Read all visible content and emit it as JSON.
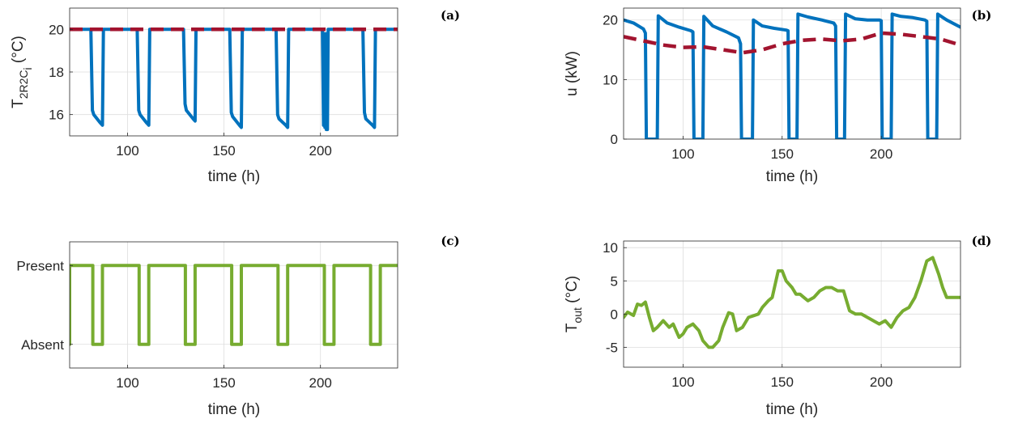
{
  "colors": {
    "temperature": "#0072bd",
    "setpoint": "#a2142f",
    "occupancy": "#77ac30",
    "outdoor": "#77ac30"
  },
  "chart_data": [
    {
      "id": "a",
      "type": "line",
      "panel_label": "(a)",
      "xlabel": "time (h)",
      "ylabel": "T",
      "ylabel_sub": "2R2C",
      "ylabel_sub2": "i",
      "ylabel_unit": " (°C)",
      "xlim": [
        70,
        240
      ],
      "ylim": [
        15,
        21
      ],
      "xticks": [
        100,
        150,
        200
      ],
      "xtick_labels": [
        "100",
        "150",
        "200"
      ],
      "yticks": [
        16,
        18,
        20
      ],
      "ytick_labels": [
        "16",
        "18",
        "20"
      ],
      "grid": true,
      "series": [
        {
          "style": "solid",
          "color_key": "temperature",
          "x": [
            70,
            81,
            81.8,
            82.5,
            86,
            87,
            87.5,
            105,
            105.8,
            106.5,
            110,
            111,
            111.5,
            129,
            129.8,
            130.5,
            134,
            135,
            135.5,
            153,
            153.8,
            154.5,
            158,
            159,
            159.5,
            177,
            177.8,
            178.5,
            182,
            183,
            183.5,
            201,
            201.6,
            201.9,
            202.3,
            202.6,
            203,
            203.6,
            204,
            222,
            222.8,
            223.5,
            227,
            228,
            228.5,
            240
          ],
          "y": [
            20,
            20,
            16.2,
            16.0,
            15.6,
            15.5,
            20,
            20,
            16.2,
            16.0,
            15.6,
            15.5,
            20,
            20,
            16.5,
            16.2,
            15.8,
            15.7,
            20,
            20,
            16.1,
            15.9,
            15.5,
            15.4,
            20,
            20,
            16.0,
            15.8,
            15.5,
            15.4,
            20,
            20,
            15.5,
            19.8,
            15.4,
            19.8,
            15.3,
            15.3,
            20,
            20,
            16.1,
            15.8,
            15.5,
            15.4,
            20,
            20
          ]
        },
        {
          "style": "dashed",
          "color_key": "setpoint",
          "x": [
            70,
            240
          ],
          "y": [
            20,
            20
          ]
        }
      ]
    },
    {
      "id": "b",
      "type": "line",
      "panel_label": "(b)",
      "xlabel": "time (h)",
      "ylabel": "u (kW)",
      "xlim": [
        70,
        240
      ],
      "ylim": [
        0,
        22
      ],
      "xticks": [
        100,
        150,
        200
      ],
      "xtick_labels": [
        "100",
        "150",
        "200"
      ],
      "yticks": [
        0,
        10,
        20
      ],
      "ytick_labels": [
        "0",
        "10",
        "20"
      ],
      "grid": true,
      "series": [
        {
          "style": "solid",
          "color_key": "temperature",
          "x": [
            70,
            75,
            80,
            81,
            81.5,
            87,
            87.5,
            92,
            98,
            104,
            105,
            105.5,
            110,
            110.5,
            115,
            122,
            128,
            129,
            129.5,
            135,
            135.5,
            140,
            146,
            152,
            153,
            153.5,
            157.5,
            158,
            163,
            170,
            176,
            177,
            177.5,
            181.5,
            182,
            187,
            193,
            199,
            200,
            200.5,
            205,
            205.5,
            210,
            216,
            222,
            223,
            223.5,
            228,
            228.5,
            233,
            240
          ],
          "y": [
            20,
            19.5,
            18.5,
            17.8,
            0,
            0,
            20.7,
            19.5,
            18.8,
            18.2,
            18.0,
            0,
            0,
            20.6,
            19,
            18,
            17,
            16,
            0,
            0,
            20,
            19,
            18.6,
            18.3,
            18.2,
            0,
            0,
            21,
            20.5,
            20,
            19.5,
            19.0,
            0,
            0,
            21,
            20.2,
            20,
            20,
            19.9,
            0,
            0,
            21,
            20.6,
            20.4,
            20,
            19.8,
            0,
            0,
            21,
            20,
            18.8
          ]
        },
        {
          "style": "dashed",
          "color_key": "setpoint",
          "x": [
            70,
            80,
            90,
            100,
            110,
            120,
            130,
            140,
            150,
            160,
            170,
            180,
            190,
            200,
            210,
            220,
            230,
            240
          ],
          "y": [
            17.2,
            16.5,
            15.8,
            15.4,
            15.5,
            15.0,
            14.5,
            15.0,
            16.0,
            16.6,
            16.8,
            16.5,
            16.8,
            17.8,
            17.6,
            17.2,
            16.8,
            15.8
          ]
        }
      ]
    },
    {
      "id": "c",
      "type": "line",
      "panel_label": "(c)",
      "xlabel": "time (h)",
      "ylabel": "",
      "xlim": [
        70,
        240
      ],
      "ylim": [
        -0.3,
        1.3
      ],
      "xticks": [
        100,
        150,
        200
      ],
      "xtick_labels": [
        "100",
        "150",
        "200"
      ],
      "yticks": [
        0,
        1
      ],
      "ytick_labels": [
        "Absent",
        "Present"
      ],
      "grid": true,
      "series": [
        {
          "style": "solid",
          "color_key": "occupancy",
          "x": [
            70,
            70,
            82,
            82,
            87,
            87,
            106,
            106,
            111,
            111,
            130,
            130,
            135,
            135,
            154,
            154,
            159,
            159,
            178,
            178,
            183,
            183,
            202,
            202,
            207,
            207,
            226,
            226,
            231,
            231,
            240
          ],
          "y": [
            0,
            1,
            1,
            0,
            0,
            1,
            1,
            0,
            0,
            1,
            1,
            0,
            0,
            1,
            1,
            0,
            0,
            1,
            1,
            0,
            0,
            1,
            1,
            0,
            0,
            1,
            1,
            0,
            0,
            1,
            1
          ]
        }
      ]
    },
    {
      "id": "d",
      "type": "line",
      "panel_label": "(d)",
      "xlabel": "time (h)",
      "ylabel": "T",
      "ylabel_sub": "out",
      "ylabel_unit": " (°C)",
      "xlim": [
        70,
        240
      ],
      "ylim": [
        -8,
        11
      ],
      "xticks": [
        100,
        150,
        200
      ],
      "xtick_labels": [
        "100",
        "150",
        "200"
      ],
      "yticks": [
        -5,
        0,
        5,
        10
      ],
      "ytick_labels": [
        "-5",
        "0",
        "5",
        "10"
      ],
      "grid": true,
      "series": [
        {
          "style": "solid",
          "color_key": "outdoor",
          "x": [
            70,
            72,
            75,
            77,
            79,
            81,
            83,
            85,
            87,
            90,
            93,
            95,
            98,
            100,
            102,
            105,
            108,
            110,
            113,
            115,
            118,
            120,
            123,
            125,
            127,
            130,
            133,
            135,
            138,
            140,
            143,
            145,
            148,
            150,
            152,
            155,
            157,
            159,
            161,
            163,
            166,
            169,
            172,
            175,
            178,
            181,
            184,
            187,
            190,
            193,
            196,
            199,
            202,
            205,
            208,
            211,
            214,
            217,
            220,
            223,
            226,
            229,
            231,
            233,
            236,
            238,
            240
          ],
          "y": [
            -0.5,
            0.3,
            -0.2,
            1.5,
            1.3,
            1.8,
            -0.5,
            -2.5,
            -2.0,
            -1.0,
            -2.0,
            -1.5,
            -3.5,
            -3.0,
            -2.0,
            -1.5,
            -2.5,
            -4.0,
            -5.0,
            -5.0,
            -4.0,
            -2.0,
            0.2,
            0.0,
            -2.5,
            -2.0,
            -0.5,
            -0.3,
            0.0,
            1.0,
            2.0,
            2.5,
            6.5,
            6.5,
            5.0,
            4.0,
            3.0,
            3.0,
            2.5,
            2.0,
            2.5,
            3.5,
            4.0,
            4.0,
            3.5,
            3.5,
            0.5,
            0.0,
            0.0,
            -0.5,
            -1.0,
            -1.5,
            -1.0,
            -2.0,
            -0.5,
            0.5,
            1.0,
            2.5,
            5.0,
            8.0,
            8.5,
            6.0,
            4.0,
            2.5,
            2.5,
            2.5,
            2.5
          ]
        }
      ]
    }
  ]
}
